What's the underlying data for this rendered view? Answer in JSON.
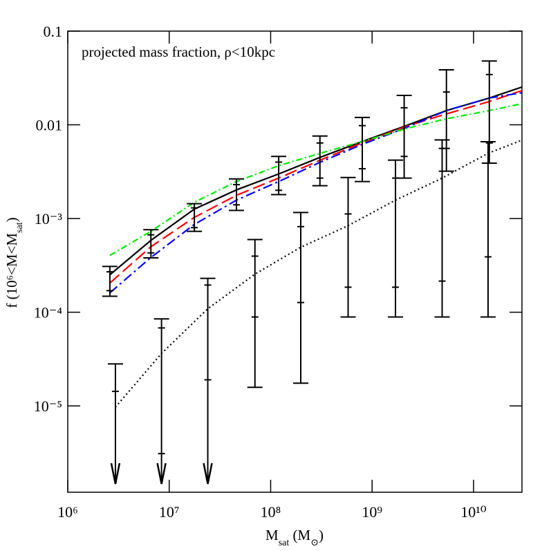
{
  "chart_data": {
    "type": "line",
    "annotation": "projected mass fraction, ρ<10kpc",
    "xlabel": [
      "M",
      "sat",
      " (M",
      "⊙",
      ")"
    ],
    "ylabel": [
      "f (10⁶<M<M",
      "sat",
      ")"
    ],
    "log_x": true,
    "log_y": true,
    "xlim": [
      1000000,
      30000000000
    ],
    "ylim": [
      1.2e-06,
      0.1
    ],
    "xticks": [
      {
        "value": 1000000,
        "label": "10⁶"
      },
      {
        "value": 10000000,
        "label": "10⁷"
      },
      {
        "value": 100000000,
        "label": "10⁸"
      },
      {
        "value": 1000000000,
        "label": "10⁹"
      },
      {
        "value": 10000000000,
        "label": "10¹⁰"
      }
    ],
    "yticks": [
      0.1,
      0.01,
      {
        "value": 0.001,
        "label": "10⁻³"
      },
      {
        "value": 0.0001,
        "label": "10⁻⁴"
      },
      {
        "value": 1e-05,
        "label": "10⁻⁵"
      }
    ],
    "series": [
      {
        "color": "#000000",
        "dash": "",
        "x": [
          2600000,
          6600000,
          17700000,
          46000000,
          120000000,
          306000000,
          800000000,
          2070000000,
          5400000000,
          14300000000,
          30000000000
        ],
        "values": [
          0.000251,
          0.000586,
          0.00126,
          0.00202,
          0.00299,
          0.00449,
          0.00663,
          0.00962,
          0.0142,
          0.0193,
          0.0253
        ]
      },
      {
        "color": "#ff0000",
        "dash": "18,7",
        "x": [
          2600000,
          6600000,
          17700000,
          46000000,
          120000000,
          306000000,
          800000000,
          2070000000,
          5400000000,
          14300000000,
          30000000000
        ],
        "values": [
          0.000205,
          0.0005,
          0.00103,
          0.00177,
          0.0027,
          0.00419,
          0.00641,
          0.00946,
          0.0131,
          0.0177,
          0.0232
        ]
      },
      {
        "color": "#0000ff",
        "dash": "14,5,3,5",
        "x": [
          2600000,
          6600000,
          17700000,
          46000000,
          120000000,
          306000000,
          800000000,
          2070000000,
          5400000000,
          14300000000,
          30000000000
        ],
        "values": [
          0.000161,
          0.000384,
          0.000865,
          0.00157,
          0.00248,
          0.00398,
          0.00619,
          0.00914,
          0.0142,
          0.0193,
          0.022
        ]
      },
      {
        "color": "#00ee00",
        "dash": "9,4,2,4",
        "x": [
          2600000,
          6600000,
          17700000,
          46000000,
          120000000,
          306000000,
          800000000,
          2070000000,
          5400000000,
          14300000000,
          30000000000
        ],
        "values": [
          0.000404,
          0.00073,
          0.00149,
          0.00248,
          0.00366,
          0.00496,
          0.00663,
          0.009,
          0.0116,
          0.0142,
          0.0168
        ]
      },
      {
        "color": "#000000",
        "dash": "2,4",
        "x": [
          2950000,
          8400000,
          24000000,
          70000000,
          198000000,
          580000000,
          1700000000,
          4900000000,
          13900000000,
          30000000000
        ],
        "values": [
          9.7e-06,
          3.63e-05,
          0.000109,
          0.000255,
          0.000494,
          0.00084,
          0.00157,
          0.0027,
          0.00497,
          0.00686
        ]
      }
    ],
    "errorbars": [
      {
        "color": "#000000",
        "x": [
          2600000,
          6600000,
          17700000,
          46000000,
          120000000,
          306000000,
          800000000,
          2070000000,
          5400000000,
          14300000000
        ],
        "hi": [
          0.000308,
          0.00076,
          0.00144,
          0.00265,
          0.0046,
          0.0076,
          0.012,
          0.0206,
          0.0386,
          0.048
        ],
        "lo": [
          0.000148,
          0.00038,
          0.00073,
          0.00122,
          0.0018,
          0.00224,
          0.00248,
          0.0027,
          0.0032,
          0.0039
        ],
        "hi_inner": [
          0.00027,
          0.00067,
          0.0013,
          0.0023,
          0.004,
          0.0064,
          0.0098,
          0.0152,
          0.0224,
          0.0344
        ],
        "lo_inner": [
          0.00017,
          0.00043,
          0.0008,
          0.0014,
          0.002,
          0.0027,
          0.0034,
          0.0046,
          0.0056,
          0.0064
        ]
      },
      {
        "color": "#000000",
        "x": [
          2950000,
          8400000,
          24000000,
          70000000,
          198000000,
          580000000,
          1700000000,
          4900000000,
          13900000000
        ],
        "hi": [
          2.81e-05,
          8.5e-05,
          0.00023,
          0.000596,
          0.00116,
          0.00274,
          0.0042,
          0.0069,
          0.0066
        ],
        "lo": [
          null,
          null,
          null,
          1.58e-05,
          1.75e-05,
          8.9e-05,
          8.9e-05,
          8.9e-05,
          8.9e-05
        ],
        "hi_inner": [
          1.43e-05,
          6.8e-05,
          0.000195,
          0.000397,
          0.00082,
          0.00112,
          0.0027,
          0.0056,
          0.0039
        ],
        "lo_inner": [
          null,
          3.1e-06,
          1.9e-05,
          8.9e-05,
          0.000127,
          0.000185,
          0.000185,
          0.000215,
          0.00039
        ]
      }
    ]
  }
}
